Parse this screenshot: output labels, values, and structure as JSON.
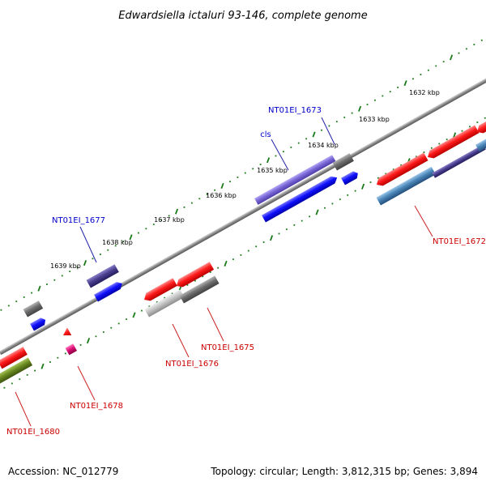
{
  "header": {
    "title": "Edwardsiella ictaluri 93-146, complete genome"
  },
  "footer": {
    "accession": "Accession: NC_012779",
    "summary": "Topology: circular; Length: 3,812,315 bp; Genes: 3,894"
  },
  "ruler": {
    "ticks": [
      "1632 kbp",
      "1633 kbp",
      "1634 kbp",
      "1635 kbp",
      "1636 kbp",
      "1637 kbp",
      "1638 kbp",
      "1639 kbp"
    ]
  },
  "gene_labels": [
    {
      "text": "NT01EI_1673",
      "color": "#0000cc"
    },
    {
      "text": "cls",
      "color": "#0000cc"
    },
    {
      "text": "NT01EI_1677",
      "color": "#0000cc"
    },
    {
      "text": "NT01EI_1672",
      "color": "#cc0000"
    },
    {
      "text": "NT01EI_1675",
      "color": "#cc0000"
    },
    {
      "text": "NT01EI_1676",
      "color": "#cc0000"
    },
    {
      "text": "NT01EI_1678",
      "color": "#cc0000"
    },
    {
      "text": "NT01EI_1680",
      "color": "#cc0000"
    }
  ],
  "colors": {
    "forward_cds": "#ee1111",
    "reverse_cds": "#1111ee",
    "backbone": "#888888",
    "tick": "#1a7a1a",
    "gray_feature": "#6e6e6e",
    "purple_feature": "#7b68d8",
    "dark_purple_feature": "#4a3f8f",
    "steel_feature": "#4a86b8",
    "olive_feature": "#6a8a20",
    "magenta_feature": "#dd1177"
  }
}
